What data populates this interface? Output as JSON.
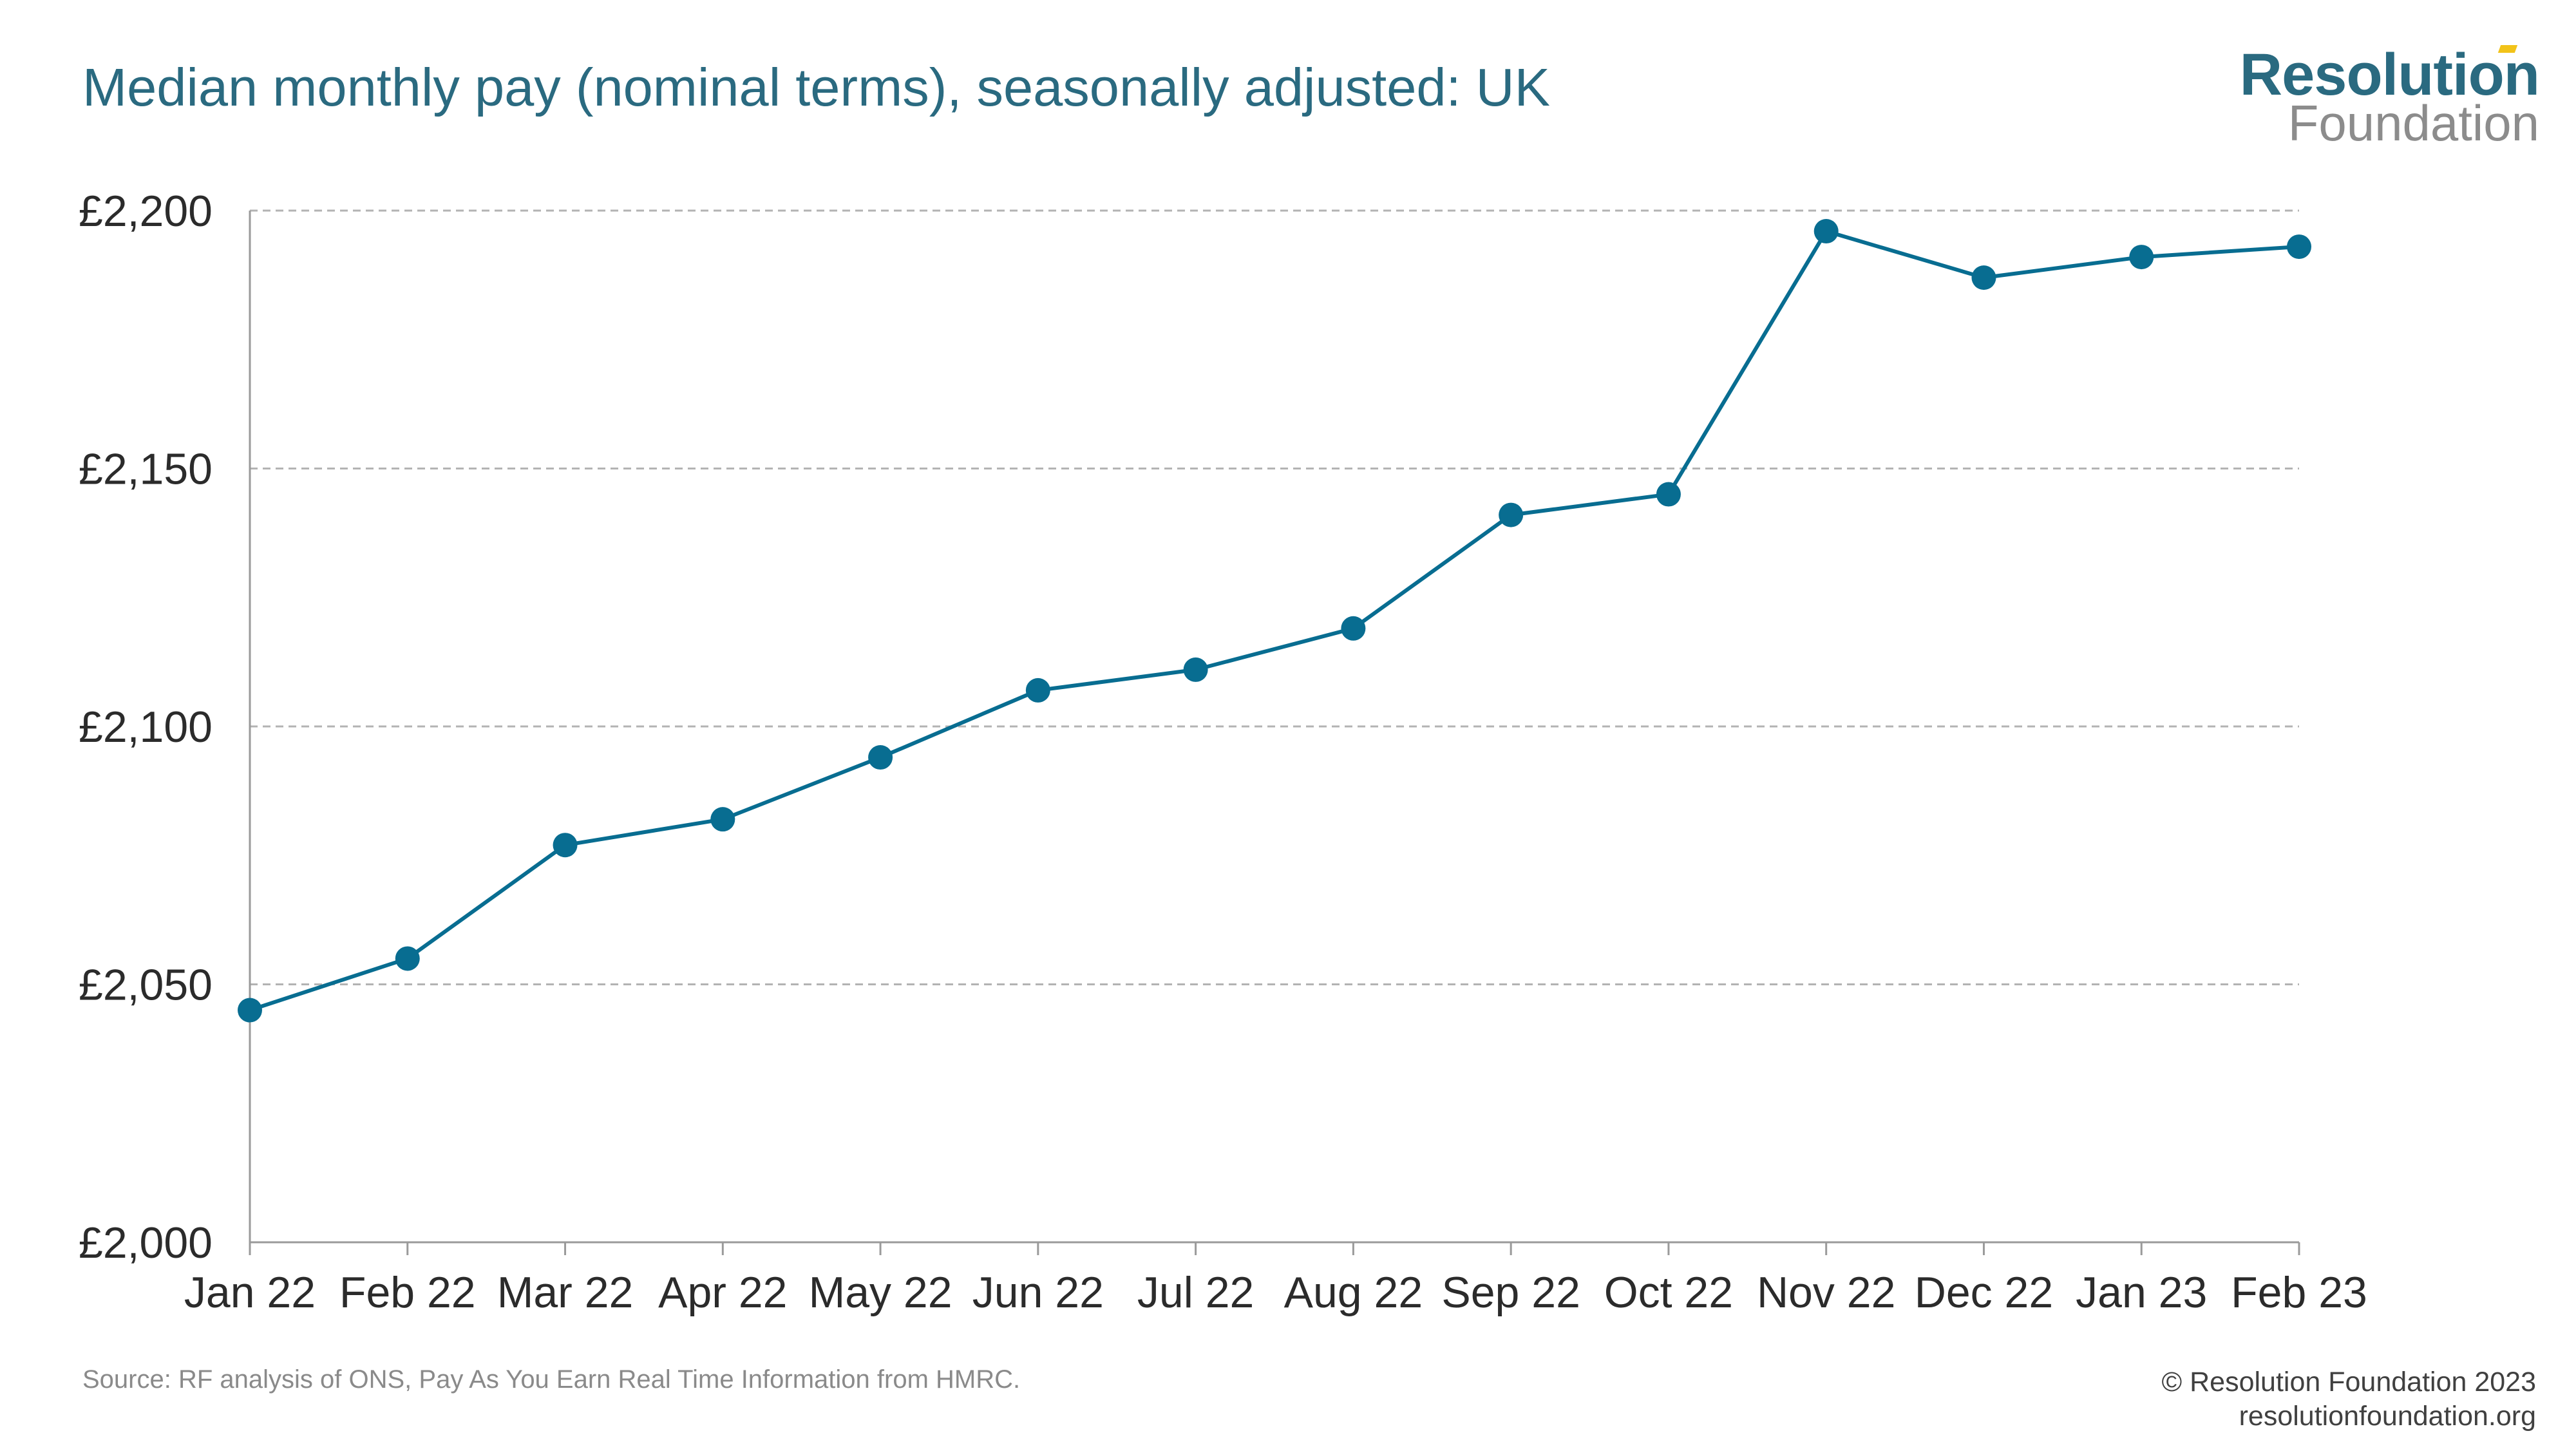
{
  "header": {
    "title": "Median monthly pay (nominal terms), seasonally adjusted: UK",
    "logo_top": "Resolution",
    "logo_bottom": "Foundation"
  },
  "footer": {
    "source": "Source: RF analysis of ONS, Pay As You Earn Real Time Information from HMRC.",
    "copyright_line1": "© Resolution Foundation 2023",
    "copyright_line2": "resolutionfoundation.org"
  },
  "colors": {
    "series": "#086d91",
    "title": "#2a6a80",
    "grid": "#b3b3b3",
    "axis": "#9a9a9a",
    "logo_accent": "#f2c319"
  },
  "chart_data": {
    "type": "line",
    "title": "Median monthly pay (nominal terms), seasonally adjusted: UK",
    "xlabel": "",
    "ylabel": "",
    "categories": [
      "Jan 22",
      "Feb 22",
      "Mar 22",
      "Apr 22",
      "May 22",
      "Jun 22",
      "Jul 22",
      "Aug 22",
      "Sep 22",
      "Oct 22",
      "Nov 22",
      "Dec 22",
      "Jan 23",
      "Feb 23"
    ],
    "series": [
      {
        "values": [
          2045,
          2055,
          2077,
          2082,
          2094,
          2107,
          2111,
          2119,
          2141,
          2145,
          2196,
          2187,
          2191,
          2193
        ]
      }
    ],
    "ylim": [
      2000,
      2200
    ],
    "yticks": [
      2000,
      2050,
      2100,
      2150,
      2200
    ],
    "ytick_labels": [
      "£2,000",
      "£2,050",
      "£2,100",
      "£2,150",
      "£2,200"
    ],
    "grid": "horizontal dashed",
    "markers": true,
    "legend": "none"
  }
}
